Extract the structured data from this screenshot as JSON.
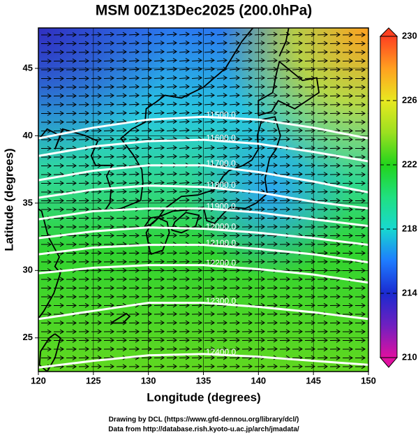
{
  "chart_data": {
    "type": "contour-map",
    "title": "MSM 00Z13Dec2025 (200.0hPa)",
    "xlabel": "Longitude (degrees)",
    "ylabel": "Latitude  (degrees)",
    "xlim": [
      120,
      150
    ],
    "ylim": [
      22.5,
      48
    ],
    "xticks": [
      120,
      125,
      130,
      135,
      140,
      145,
      150
    ],
    "yticks": [
      25,
      30,
      35,
      40,
      45
    ],
    "colorbar_lim": [
      210,
      230
    ],
    "colorbar_ticks": [
      210,
      214,
      218,
      222,
      226,
      230
    ],
    "contour_lons": [
      120,
      125,
      130,
      135,
      140,
      145,
      150
    ],
    "contours": [
      {
        "label": "11500.0",
        "lats": [
          39.8,
          40.6,
          41.2,
          41.4,
          41.2,
          40.6,
          39.8
        ]
      },
      {
        "label": "11600.0",
        "lats": [
          38.5,
          39.2,
          39.6,
          39.7,
          39.4,
          38.8,
          38.1
        ]
      },
      {
        "label": "11700.0",
        "lats": [
          36.7,
          37.4,
          37.8,
          37.8,
          37.3,
          36.6,
          35.8
        ]
      },
      {
        "label": "11800.0",
        "lats": [
          35.4,
          36.0,
          36.3,
          36.2,
          35.8,
          35.1,
          34.6
        ]
      },
      {
        "label": "11900.0",
        "lats": [
          33.8,
          34.4,
          34.6,
          34.6,
          34.3,
          33.8,
          33.3
        ]
      },
      {
        "label": "12000.0",
        "lats": [
          32.4,
          32.9,
          33.2,
          33.1,
          32.8,
          32.4,
          31.9
        ]
      },
      {
        "label": "12100.0",
        "lats": [
          31.2,
          31.7,
          31.9,
          31.9,
          31.6,
          31.2,
          30.6
        ]
      },
      {
        "label": "12200.0",
        "lats": [
          29.8,
          30.2,
          30.4,
          30.4,
          30.1,
          29.7,
          29.1
        ]
      },
      {
        "label": "12300.0",
        "lats": [
          26.4,
          27.0,
          27.6,
          27.6,
          27.3,
          26.9,
          26.4
        ]
      },
      {
        "label": "12400.0",
        "lats": [
          22.8,
          23.3,
          23.7,
          23.8,
          23.6,
          23.3,
          23.0
        ]
      }
    ],
    "footer": [
      "Drawing by DCL (https://www.gfd-dennou.org/library/dcl/)",
      "Data from http://database.rish.kyoto-u.ac.jp/arch/jmadata/"
    ]
  }
}
